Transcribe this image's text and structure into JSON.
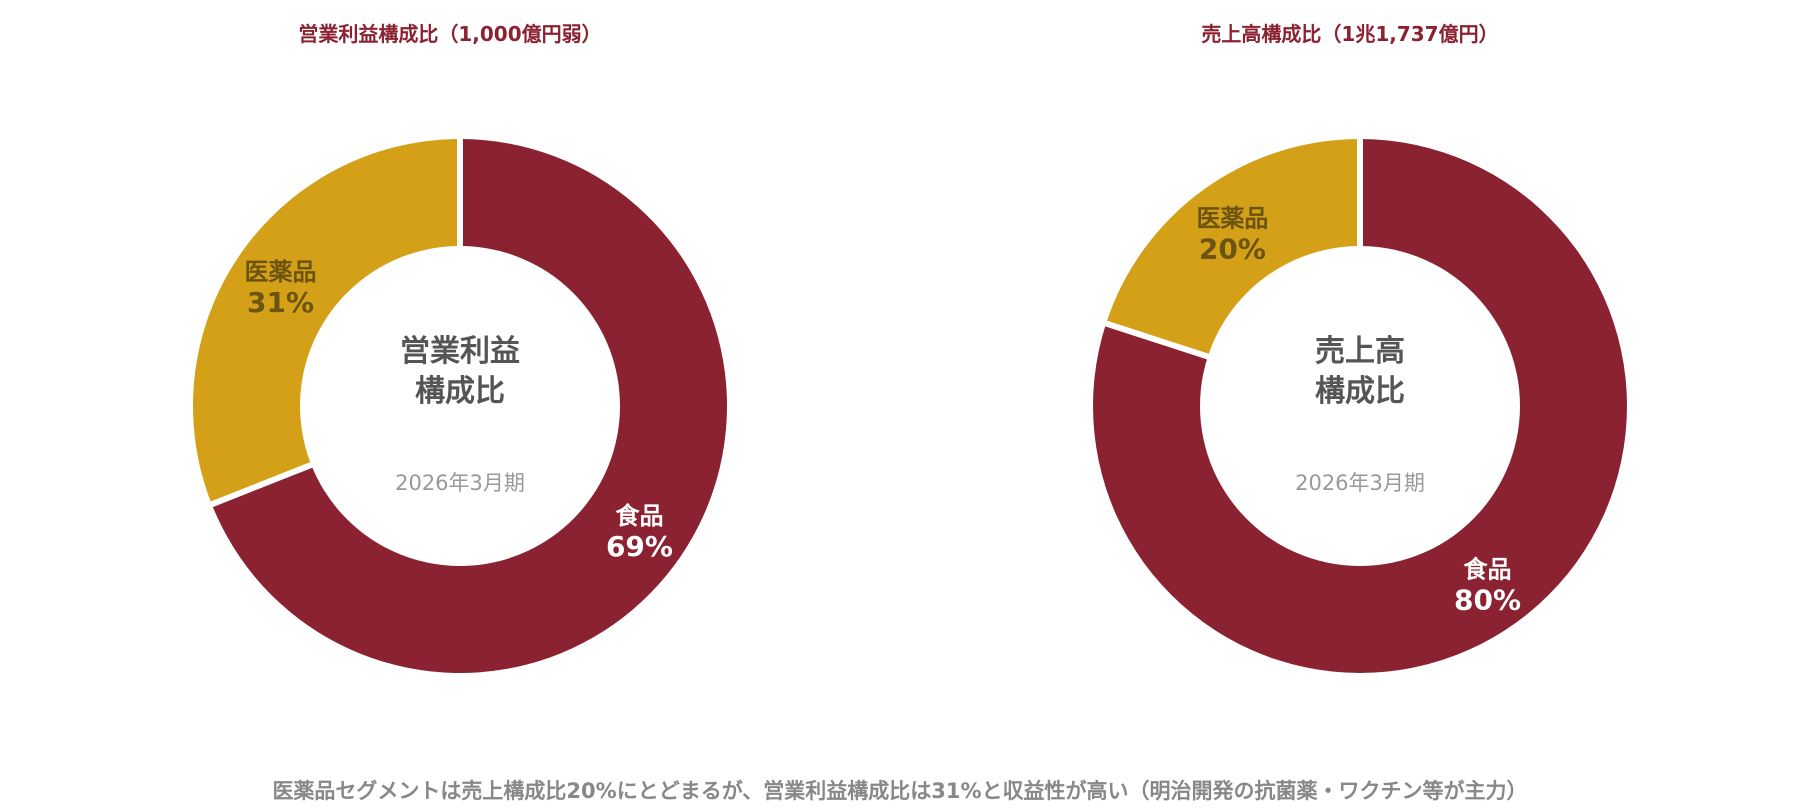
{
  "colors": {
    "food": "#8B2232",
    "pharma": "#D4A017",
    "title": "#8B2232",
    "pharma_label": "#6B5410",
    "food_label": "#ffffff",
    "center_title": "#555555",
    "center_sub": "#999999",
    "footer": "#888888"
  },
  "chart_data": [
    {
      "type": "pie",
      "title": "営業利益構成比（1,000億円弱）",
      "center_title_lines": [
        "営業利益",
        "構成比"
      ],
      "center_subtitle": "2026年3月期",
      "slices": [
        {
          "label": "食品",
          "value": 69,
          "value_label": "69%",
          "color": "#8B2232"
        },
        {
          "label": "医薬品",
          "value": 31,
          "value_label": "31%",
          "color": "#D4A017"
        }
      ]
    },
    {
      "type": "pie",
      "title": "売上高構成比（1兆1,737億円）",
      "center_title_lines": [
        "売上高",
        "構成比"
      ],
      "center_subtitle": "2026年3月期",
      "slices": [
        {
          "label": "食品",
          "value": 80,
          "value_label": "80%",
          "color": "#8B2232"
        },
        {
          "label": "医薬品",
          "value": 20,
          "value_label": "20%",
          "color": "#D4A017"
        }
      ]
    }
  ],
  "footer_note": "医薬品セグメントは売上構成比20%にとどまるが、営業利益構成比は31%と収益性が高い（明治開発の抗菌薬・ワクチン等が主力）"
}
